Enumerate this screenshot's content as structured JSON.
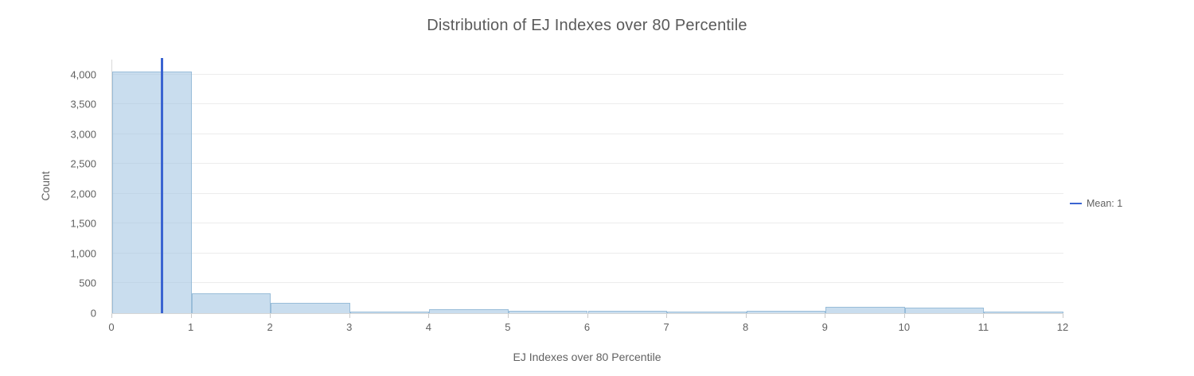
{
  "chart_data": {
    "type": "histogram",
    "title": "Distribution of EJ Indexes over 80 Percentile",
    "xlabel": "EJ Indexes over 80 Percentile",
    "ylabel": "Count",
    "bin_edges": [
      0,
      1,
      2,
      3,
      4,
      5,
      6,
      7,
      8,
      9,
      10,
      11,
      12
    ],
    "counts": [
      4050,
      330,
      170,
      25,
      65,
      35,
      40,
      30,
      35,
      105,
      90,
      30
    ],
    "xlim": [
      0,
      12
    ],
    "ylim": [
      0,
      4250
    ],
    "x_tick_values": [
      0,
      1,
      2,
      3,
      4,
      5,
      6,
      7,
      8,
      9,
      10,
      11,
      12
    ],
    "x_tick_labels": [
      "0",
      "1",
      "2",
      "3",
      "4",
      "5",
      "6",
      "7",
      "8",
      "9",
      "10",
      "11",
      "12"
    ],
    "y_tick_values": [
      0,
      500,
      1000,
      1500,
      2000,
      2500,
      3000,
      3500,
      4000
    ],
    "y_tick_labels": [
      "0",
      "500",
      "1,000",
      "1,500",
      "2,000",
      "2,500",
      "3,000",
      "3,500",
      "4,000"
    ],
    "grid": true,
    "mean_line": {
      "value": 0.63,
      "color": "#3a64d1"
    },
    "legend": {
      "position": "right",
      "items": [
        {
          "label": "Mean: 1",
          "color": "#3a64d1"
        }
      ]
    },
    "colors": {
      "bar_fill": "rgba(165,199,227,0.6)",
      "bar_border": "rgba(136,177,210,0.75)",
      "gridline": "#ececec",
      "axis_line": "#d6d6d6",
      "tick_text": "#616161",
      "title_text": "#5a5a5a"
    }
  }
}
